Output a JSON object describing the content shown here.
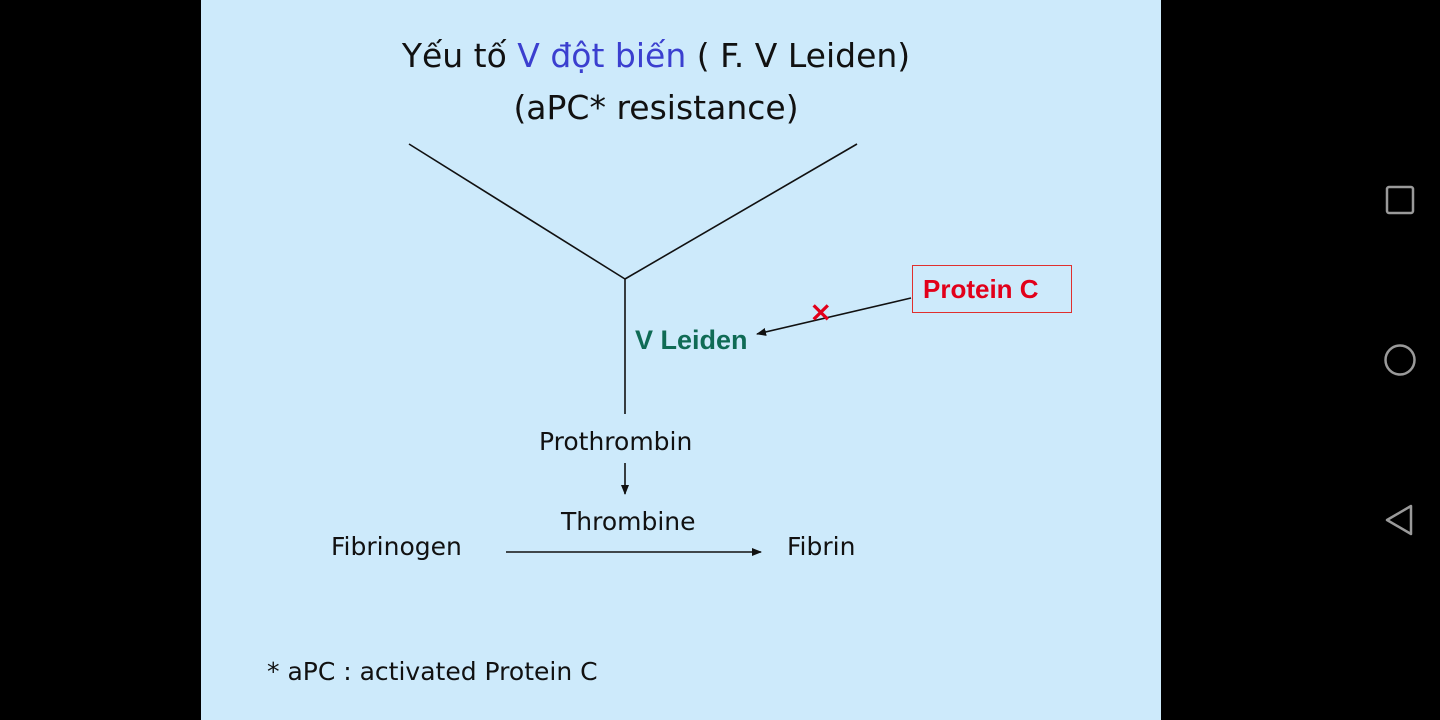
{
  "slide": {
    "title_part1": "Yếu tố ",
    "title_accent": "V đột biến",
    "title_part2": " ( F. V Leiden)",
    "subtitle": "(aPC* resistance)",
    "v_leiden": "V Leiden",
    "protein_c": "Protein C",
    "blocked_mark": "×",
    "prothrombin": "Prothrombin",
    "thrombine": "Thrombine",
    "fibrinogen": "Fibrinogen",
    "fibrin": "Fibrin",
    "footnote": "* aPC : activated Protein C"
  },
  "colors": {
    "slide_background": "#cdeafb",
    "accent_blue": "#3b3fcf",
    "leiden_green": "#0f6b55",
    "protein_red": "#e2001a"
  },
  "navigation": {
    "buttons": [
      {
        "name": "recent-apps",
        "icon": "square-icon"
      },
      {
        "name": "home",
        "icon": "circle-icon"
      },
      {
        "name": "back",
        "icon": "triangle-back-icon"
      }
    ]
  }
}
